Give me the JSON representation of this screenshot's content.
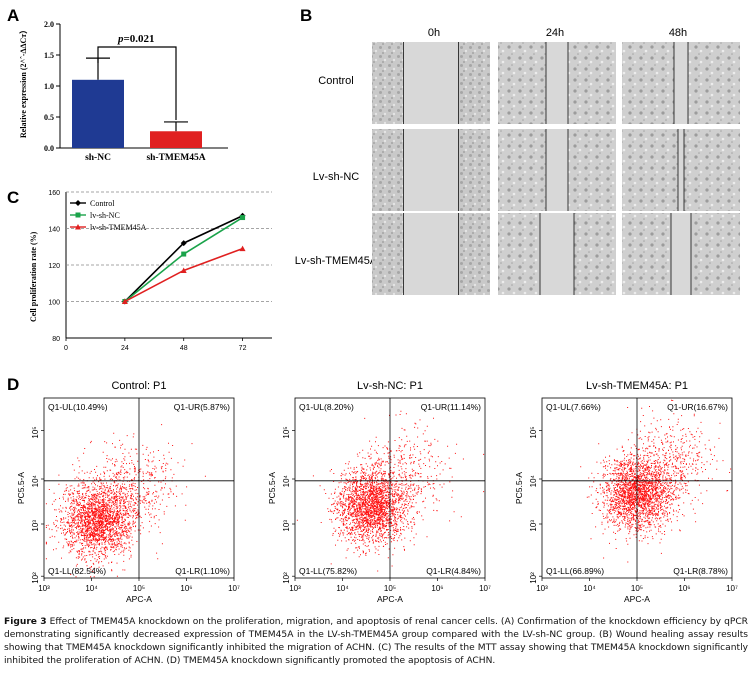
{
  "panels": {
    "A": "A",
    "B": "B",
    "C": "C",
    "D": "D"
  },
  "panelA": {
    "ylabel": "Relative expression (2^ˆ-ΔΔCт）",
    "annotation_p": "p",
    "annotation_val": "=0.021"
  },
  "panelB": {
    "columns": [
      "0h",
      "24h",
      "48h"
    ],
    "rows": [
      "Control",
      "Lv-sh-NC",
      "Lv-sh-TMEM45A"
    ]
  },
  "panelC": {
    "ylabel": "Cell proliferation rate (%)"
  },
  "panelD": {
    "xlabel": "APC-A",
    "ylabel": "PC5.5-A",
    "xticks": [
      "10³",
      "10⁴",
      "10⁵",
      "10⁶",
      "10⁷"
    ],
    "yticks": [
      "10²",
      "10³",
      "10⁴",
      "10⁵"
    ]
  },
  "caption": {
    "figure_label": "Figure 3",
    "text": " Effect of TMEM45A knockdown on the proliferation, migration, and apoptosis of renal cancer cells. (A) Confirmation of the knockdown efficiency by qPCR demonstrating significantly decreased expression of TMEM45A in the LV-sh-TMEM45A group compared with the LV-sh-NC group. (B) Wound healing assay results showing that TMEM45A knockdown significantly inhibited the migration of ACHN. (C) The results of the MTT assay showing that TMEM45A knockdown significantly inhibited the proliferation of ACHN. (D) TMEM45A knockdown significantly promoted the apoptosis of ACHN."
  },
  "colors": {
    "nc_bar": "#1f3a93",
    "kd_bar": "#e02020",
    "control_line": "#000000",
    "nc_line": "#1aa34a",
    "kd_line": "#e02020",
    "flow_dots": "#ff1010"
  },
  "chart_data": [
    {
      "type": "bar",
      "categories": [
        "sh-NC",
        "sh-TMEM45A"
      ],
      "values": [
        1.1,
        0.27
      ],
      "errors": [
        0.35,
        0.15
      ],
      "ylim": [
        0,
        2.0
      ],
      "yticks": [
        0.0,
        0.5,
        1.0,
        1.5,
        2.0
      ],
      "ylabel": "Relative expression (2^ˆ-ΔΔCт）",
      "xlabel": "",
      "title": ""
    },
    {
      "type": "line",
      "x": [
        24,
        48,
        72
      ],
      "xticks": [
        0,
        24,
        48,
        72
      ],
      "xlim": [
        0,
        84
      ],
      "ylim": [
        80,
        160
      ],
      "yticks": [
        80,
        100,
        120,
        140,
        160
      ],
      "grid": true,
      "legend": "top-left",
      "ylabel": "Cell proliferation rate (%)",
      "series": [
        {
          "name": "Control",
          "values": [
            100,
            132,
            147
          ]
        },
        {
          "name": "lv-sh-NC",
          "values": [
            100,
            126,
            146
          ]
        },
        {
          "name": "lv-sh-TMEM45A",
          "values": [
            100,
            117,
            129
          ]
        }
      ]
    },
    {
      "type": "scatter",
      "title": "Control: P1",
      "quadrants": [
        "Q1-UL(10.49%)",
        "Q1-UR(5.87%)",
        "Q1-LL(82.54%)",
        "Q1-LR(1.10%)"
      ]
    },
    {
      "type": "scatter",
      "title": "Lv-sh-NC: P1",
      "quadrants": [
        "Q1-UL(8.20%)",
        "Q1-UR(11.14%)",
        "Q1-LL(75.82%)",
        "Q1-LR(4.84%)"
      ]
    },
    {
      "type": "scatter",
      "title": "Lv-sh-TMEM45A: P1",
      "quadrants": [
        "Q1-UL(7.66%)",
        "Q1-UR(16.67%)",
        "Q1-LL(66.89%)",
        "Q1-LR(8.78%)"
      ]
    }
  ]
}
